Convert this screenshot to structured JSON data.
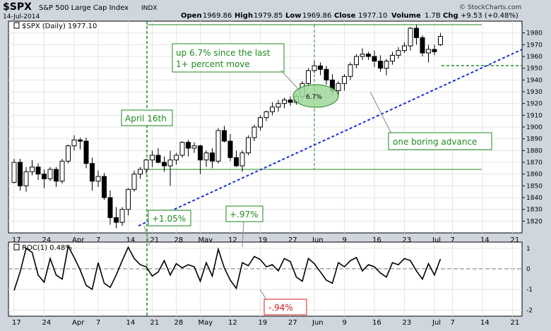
{
  "header": {
    "symbol": "$SPX",
    "name": "S&P 500 Large Cap Index",
    "exchange": "INDX",
    "date": "14-Jul-2014",
    "open_label": "Open",
    "open": "1969.86",
    "high_label": "High",
    "high": "1979.85",
    "low_label": "Low",
    "low": "1969.86",
    "close_label": "Close",
    "close": "1977.10",
    "volume_label": "Volume",
    "volume": "1.7B",
    "chg_label": "Chg",
    "chg": "+9.53 (+0.48%)",
    "copyright": "© StockCharts.com"
  },
  "price_panel": {
    "legend": "$SPX (Daily) 1977.10",
    "legend_icon": "chart-series-icon"
  },
  "roc_panel": {
    "legend": "ROC(1) 0.48%",
    "legend_icon": "chart-series-icon"
  },
  "annotations": {
    "april16": "April 16th",
    "up_move": "up 6.7% since the last\n1+ percent move",
    "oval_label": "6.7%",
    "boring": "one boring advance",
    "roc_a": "+1.05%",
    "roc_b": "+.97%",
    "roc_c": "-.94%"
  },
  "colors": {
    "up_candle": "#ffffff",
    "down_candle": "#000000",
    "trendline": "#1a2fdc",
    "annotation_green": "#1d8a1d",
    "annotation_box_fill": "#ffffff",
    "oval_fill": "#9fd89a",
    "roc_b_box": "#ffffff",
    "roc_c_text": "#d01c1c",
    "panel_bg": "#ffffff",
    "page_bg": "#cfd6de",
    "grid": "#e4e4e4"
  },
  "chart_data": [
    {
      "type": "candlestick",
      "title": "$SPX (Daily) 1977.10",
      "ylim": [
        1810,
        1990
      ],
      "y_ticks": [
        1820,
        1830,
        1840,
        1850,
        1860,
        1870,
        1880,
        1890,
        1900,
        1910,
        1920,
        1930,
        1940,
        1950,
        1960,
        1970,
        1980
      ],
      "x_ticks": [
        {
          "label": "17",
          "i": 0
        },
        {
          "label": "24",
          "i": 5
        },
        {
          "label": "Apr",
          "i": 10
        },
        {
          "label": "7",
          "i": 14
        },
        {
          "label": "14",
          "i": 19
        },
        {
          "label": "21",
          "i": 23
        },
        {
          "label": "28",
          "i": 27
        },
        {
          "label": "May",
          "i": 31
        },
        {
          "label": "12",
          "i": 36
        },
        {
          "label": "19",
          "i": 41
        },
        {
          "label": "27",
          "i": 46
        },
        {
          "label": "Jun",
          "i": 50
        },
        {
          "label": "9",
          "i": 55
        },
        {
          "label": "16",
          "i": 60
        },
        {
          "label": "23",
          "i": 65
        },
        {
          "label": "Jul",
          "i": 70
        },
        {
          "label": "7",
          "i": 73
        },
        {
          "label": "14",
          "i": 78
        },
        {
          "label": "21",
          "i": 83
        }
      ],
      "ohlc": [
        [
          1853,
          1873,
          1852,
          1870
        ],
        [
          1870,
          1873,
          1846,
          1850
        ],
        [
          1850,
          1866,
          1845,
          1862
        ],
        [
          1862,
          1872,
          1859,
          1866
        ],
        [
          1866,
          1869,
          1855,
          1860
        ],
        [
          1860,
          1864,
          1848,
          1856
        ],
        [
          1856,
          1866,
          1854,
          1864
        ],
        [
          1864,
          1866,
          1849,
          1854
        ],
        [
          1854,
          1873,
          1852,
          1871
        ],
        [
          1871,
          1885,
          1869,
          1884
        ],
        [
          1884,
          1893,
          1880,
          1889
        ],
        [
          1889,
          1891,
          1881,
          1888
        ],
        [
          1888,
          1891,
          1865,
          1869
        ],
        [
          1869,
          1874,
          1846,
          1854
        ],
        [
          1854,
          1863,
          1849,
          1858
        ],
        [
          1858,
          1861,
          1838,
          1840
        ],
        [
          1840,
          1846,
          1817,
          1823
        ],
        [
          1823,
          1832,
          1814,
          1819
        ],
        [
          1819,
          1832,
          1816,
          1830
        ],
        [
          1830,
          1848,
          1825,
          1847
        ],
        [
          1847,
          1863,
          1845,
          1860
        ],
        [
          1860,
          1866,
          1856,
          1864
        ],
        [
          1864,
          1873,
          1860,
          1872
        ],
        [
          1872,
          1880,
          1866,
          1876
        ],
        [
          1876,
          1882,
          1869,
          1870
        ],
        [
          1870,
          1875,
          1862,
          1867
        ],
        [
          1867,
          1880,
          1850,
          1872
        ],
        [
          1872,
          1878,
          1868,
          1876
        ],
        [
          1876,
          1888,
          1874,
          1887
        ],
        [
          1887,
          1889,
          1875,
          1882
        ],
        [
          1882,
          1887,
          1878,
          1884
        ],
        [
          1884,
          1885,
          1860,
          1872
        ],
        [
          1872,
          1880,
          1866,
          1878
        ],
        [
          1878,
          1882,
          1865,
          1871
        ],
        [
          1871,
          1899,
          1869,
          1897
        ],
        [
          1897,
          1901,
          1887,
          1888
        ],
        [
          1888,
          1894,
          1871,
          1874
        ],
        [
          1874,
          1880,
          1866,
          1867
        ],
        [
          1867,
          1880,
          1862,
          1878
        ],
        [
          1878,
          1893,
          1876,
          1891
        ],
        [
          1891,
          1902,
          1888,
          1900
        ],
        [
          1900,
          1910,
          1897,
          1908
        ],
        [
          1908,
          1914,
          1905,
          1913
        ],
        [
          1913,
          1921,
          1910,
          1917
        ],
        [
          1917,
          1923,
          1913,
          1920
        ],
        [
          1920,
          1925,
          1916,
          1923
        ],
        [
          1923,
          1926,
          1918,
          1921
        ],
        [
          1921,
          1928,
          1919,
          1926
        ],
        [
          1926,
          1939,
          1924,
          1937
        ],
        [
          1937,
          1950,
          1934,
          1948
        ],
        [
          1948,
          1956,
          1946,
          1952
        ],
        [
          1952,
          1955,
          1944,
          1949
        ],
        [
          1949,
          1952,
          1936,
          1940
        ],
        [
          1940,
          1945,
          1927,
          1931
        ],
        [
          1931,
          1939,
          1926,
          1937
        ],
        [
          1937,
          1945,
          1931,
          1943
        ],
        [
          1943,
          1955,
          1940,
          1953
        ],
        [
          1953,
          1962,
          1950,
          1960
        ],
        [
          1960,
          1967,
          1957,
          1962
        ],
        [
          1962,
          1964,
          1957,
          1960
        ],
        [
          1960,
          1965,
          1951,
          1956
        ],
        [
          1956,
          1961,
          1947,
          1950
        ],
        [
          1950,
          1958,
          1944,
          1956
        ],
        [
          1956,
          1964,
          1953,
          1961
        ],
        [
          1961,
          1968,
          1958,
          1965
        ],
        [
          1965,
          1972,
          1963,
          1969
        ],
        [
          1969,
          1985,
          1965,
          1984
        ],
        [
          1984,
          1987,
          1970,
          1976
        ],
        [
          1976,
          1978,
          1960,
          1963
        ],
        [
          1963,
          1970,
          1955,
          1966
        ],
        [
          1966,
          1970,
          1961,
          1964
        ],
        [
          1970,
          1980,
          1969,
          1977
        ]
      ]
    },
    {
      "type": "line",
      "title": "ROC(1) 0.48%",
      "ylim": [
        -2.3,
        1.3
      ],
      "y_ticks": [
        1,
        0,
        -1,
        -2
      ],
      "values": [
        -1.05,
        -0.15,
        1.0,
        0.8,
        -0.3,
        -0.65,
        0.5,
        -0.3,
        -0.5,
        1.1,
        0.55,
        -0.05,
        -0.8,
        -1.0,
        0.3,
        -0.7,
        -0.9,
        -0.3,
        0.4,
        1.05,
        0.5,
        0.2,
        0.1,
        -0.35,
        -0.15,
        0.4,
        -0.3,
        0.25,
        0.05,
        0.2,
        0.1,
        -0.6,
        0.3,
        -0.35,
        0.95,
        0.05,
        -0.55,
        -0.95,
        0.3,
        0.15,
        0.6,
        0.45,
        0.1,
        0.2,
        -0.1,
        0.5,
        0.35,
        -0.4,
        -0.6,
        0.5,
        0.25,
        -0.15,
        -0.55,
        -0.7,
        0.3,
        0.1,
        0.4,
        0.55,
        -0.1,
        0.2,
        0.1,
        -0.2,
        -0.4,
        0.3,
        0.2,
        0.5,
        0.4,
        -0.1,
        -0.5,
        0.25,
        -0.3,
        0.48
      ]
    }
  ]
}
